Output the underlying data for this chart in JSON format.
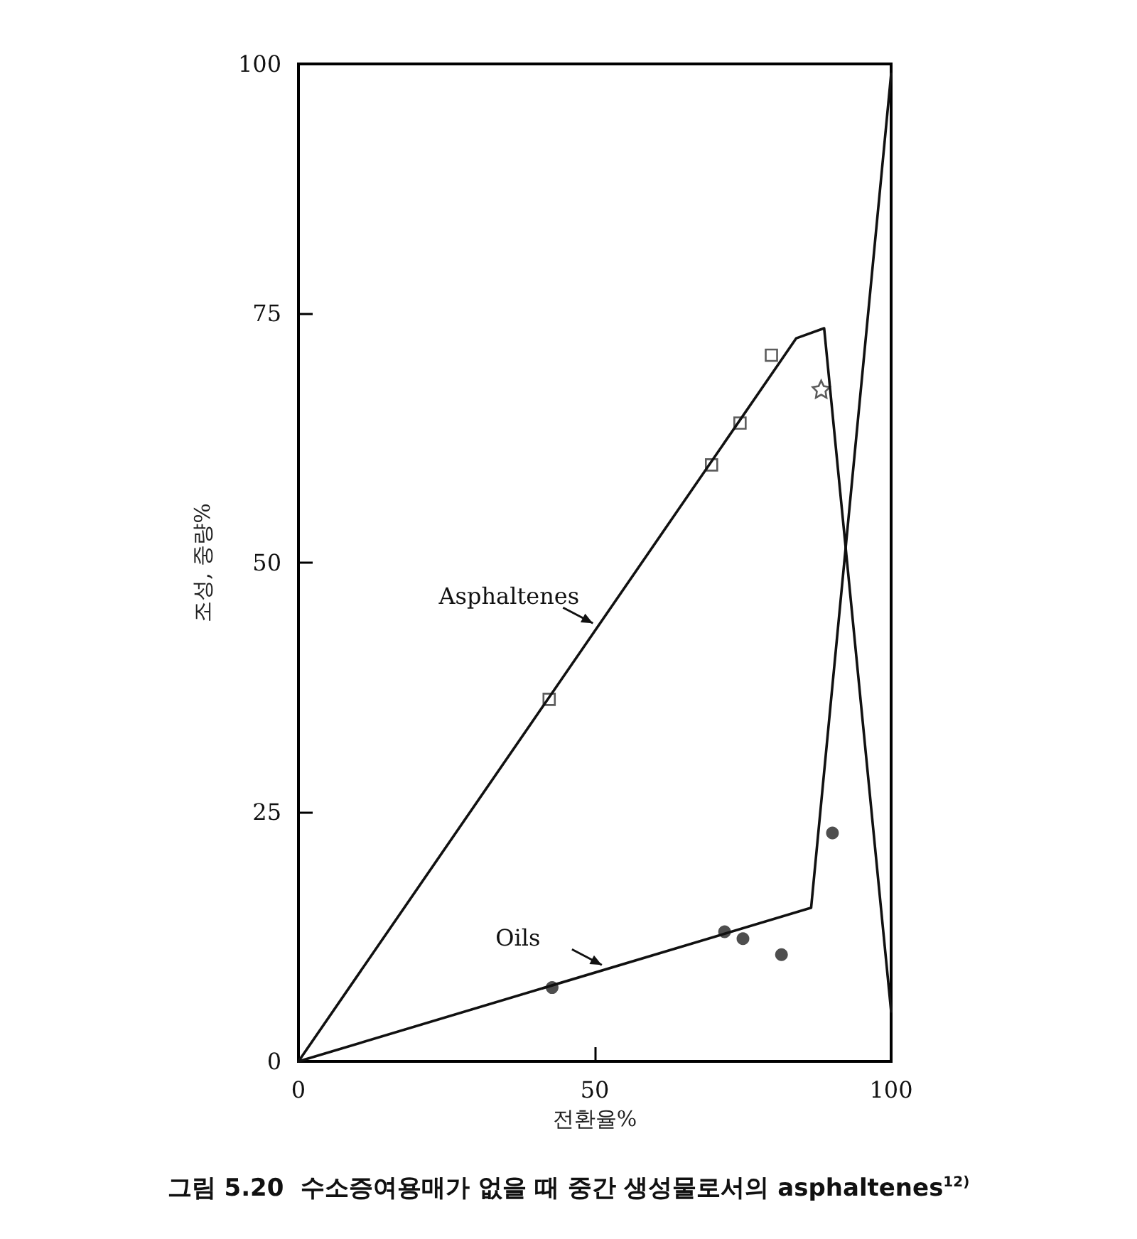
{
  "chart_data": {
    "type": "line",
    "title": "그림 5.20  수소증여용매가 없을 때 중간 생성물로서의 asphaltenes$^{12)}$",
    "xlabel": "전환율%",
    "ylabel": "조성, 중량%",
    "xlim": [
      0,
      100
    ],
    "xticks": [
      0,
      50,
      100
    ],
    "ylim": [
      0,
      100
    ],
    "yticks": [
      0,
      25,
      50,
      75,
      100
    ],
    "grid": false,
    "legend": false,
    "series": [
      {
        "name": "Asphaltenes",
        "marker": "none",
        "color": "#111111",
        "x": [
          0,
          84,
          88.7,
          100
        ],
        "values": [
          0,
          72.5,
          73.5,
          5
        ]
      },
      {
        "name": "Oils",
        "marker": "none",
        "color": "#111111",
        "x": [
          0,
          86.5,
          100
        ],
        "values": [
          0,
          15.4,
          99
        ]
      },
      {
        "type": "scatter",
        "marker": "square",
        "color": "#333333",
        "x": [
          42.3,
          69.7,
          74.5,
          79.8
        ],
        "values": [
          36.3,
          59.8,
          64,
          70.8
        ]
      },
      {
        "type": "scatter",
        "marker": "star",
        "color": "#333333",
        "x": [
          88.2
        ],
        "values": [
          67.4
        ]
      },
      {
        "type": "scatter",
        "marker": "circle",
        "color": "#222222",
        "x": [
          42.8,
          71.9,
          75,
          81.5,
          90.1
        ],
        "values": [
          7.4,
          13,
          12.3,
          10.7,
          22.9
        ]
      }
    ]
  }
}
